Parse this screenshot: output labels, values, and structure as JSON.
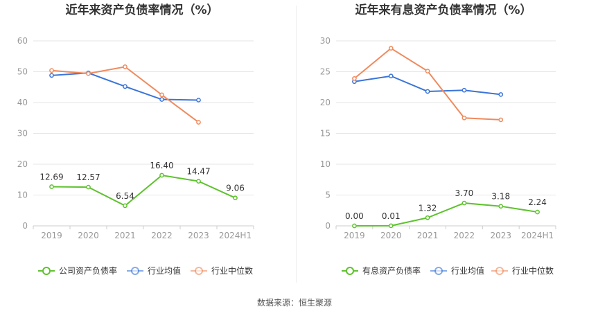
{
  "source_text": "数据来源：恒生聚源",
  "colors": {
    "company": "#5ec22e",
    "avg": "#3a74d8",
    "median": "#f08a5d",
    "grid": "#e6e6e6",
    "axis": "#999999",
    "label": "#333333"
  },
  "chart_data": [
    {
      "type": "line",
      "title": "近年来资产负债率情况（%）",
      "categories": [
        "2019",
        "2020",
        "2021",
        "2022",
        "2023",
        "2024H1"
      ],
      "ylim": [
        0,
        60
      ],
      "yticks": [
        0,
        10,
        20,
        30,
        40,
        50,
        60
      ],
      "grid": true,
      "legend_position": "bottom",
      "series": [
        {
          "name": "公司资产负债率",
          "values": [
            12.69,
            12.57,
            6.54,
            16.4,
            14.47,
            9.06
          ],
          "labels": [
            "12.69",
            "12.57",
            "6.54",
            "16.40",
            "14.47",
            "9.06"
          ],
          "color": "#5ec22e"
        },
        {
          "name": "行业均值",
          "values": [
            48.8,
            49.6,
            45.2,
            41.0,
            40.8,
            null
          ],
          "color": "#3a74d8"
        },
        {
          "name": "行业中位数",
          "values": [
            50.4,
            49.4,
            51.6,
            42.5,
            33.6,
            null
          ],
          "color": "#f08a5d"
        }
      ]
    },
    {
      "type": "line",
      "title": "近年来有息资产负债率情况（%）",
      "categories": [
        "2019",
        "2020",
        "2021",
        "2022",
        "2023",
        "2024H1"
      ],
      "ylim": [
        0,
        30
      ],
      "yticks": [
        0,
        5,
        10,
        15,
        20,
        25,
        30
      ],
      "grid": true,
      "legend_position": "bottom",
      "series": [
        {
          "name": "有息资产负债率",
          "values": [
            0.0,
            0.01,
            1.32,
            3.7,
            3.18,
            2.24
          ],
          "labels": [
            "0.00",
            "0.01",
            "1.32",
            "3.70",
            "3.18",
            "2.24"
          ],
          "color": "#5ec22e"
        },
        {
          "name": "行业均值",
          "values": [
            23.4,
            24.3,
            21.8,
            22.0,
            21.3,
            null
          ],
          "color": "#3a74d8"
        },
        {
          "name": "行业中位数",
          "values": [
            23.9,
            28.8,
            25.1,
            17.5,
            17.2,
            null
          ],
          "color": "#f08a5d"
        }
      ]
    }
  ]
}
